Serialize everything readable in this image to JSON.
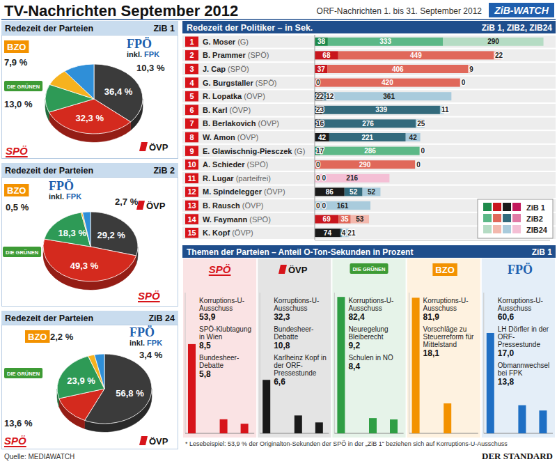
{
  "header": {
    "title": "TV-Nachrichten September 2012",
    "subtitle": "ORF-Nachrichten 1. bis 31. September 2012",
    "badge": "ZiB-WATCH"
  },
  "chart_data": [
    {
      "type": "pie",
      "title": "Redezeit der Parteien",
      "subtitle": "ZiB 1",
      "categories": [
        "ÖVP",
        "SPÖ",
        "DIE GRÜNEN",
        "BZO",
        "FPÖ inkl. FPK"
      ],
      "values": [
        36.4,
        32.3,
        13.0,
        7.9,
        10.3
      ],
      "value_labels": [
        "36,4 %",
        "32,3 %",
        "13,0 %",
        "7,9 %",
        "10,3 %"
      ],
      "colors": [
        "#3b3b3b",
        "#d42a1e",
        "#2e9a56",
        "#f6b21f",
        "#2f8fd8"
      ],
      "data_labels": true
    },
    {
      "type": "pie",
      "title": "Redezeit der Parteien",
      "subtitle": "ZiB 2",
      "categories": [
        "ÖVP",
        "SPÖ",
        "DIE GRÜNEN",
        "BZO",
        "FPÖ inkl. FPK"
      ],
      "values": [
        29.2,
        49.3,
        18.3,
        0.5,
        2.7
      ],
      "value_labels": [
        "29,2 %",
        "49,3 %",
        "18,3 %",
        "0,5 %",
        "2,7 %"
      ],
      "colors": [
        "#3b3b3b",
        "#d42a1e",
        "#2e9a56",
        "#f6b21f",
        "#2f8fd8"
      ],
      "data_labels": true
    },
    {
      "type": "pie",
      "title": "Redezeit der Parteien",
      "subtitle": "ZiB 24",
      "categories": [
        "ÖVP",
        "SPÖ",
        "DIE GRÜNEN",
        "BZO",
        "FPÖ inkl. FPK"
      ],
      "values": [
        56.8,
        13.6,
        23.9,
        2.2,
        3.4
      ],
      "value_labels": [
        "56,8 %",
        "13,6 %",
        "23,9 %",
        "2,2 %",
        "3,4 %"
      ],
      "colors": [
        "#3b3b3b",
        "#d42a1e",
        "#2e9a56",
        "#f6b21f",
        "#2f8fd8"
      ],
      "data_labels": true
    },
    {
      "type": "bar",
      "orientation": "horizontal",
      "stacked": true,
      "data_labels": true,
      "tick_labels": false,
      "legend": "bottom-right",
      "title": "Redezeit der Politiker – in Sek.",
      "subtitle": "ZiB 1, ZIB2, ZIB24",
      "xlim": [
        0,
        680
      ],
      "ranks": [
        1,
        2,
        3,
        4,
        5,
        6,
        7,
        8,
        9,
        10,
        11,
        12,
        13,
        14,
        15
      ],
      "categories": [
        "G. Moser (G)",
        "B. Prammer (SPÖ)",
        "J. Cap (SPÖ)",
        "G. Burgstaller (SPÖ)",
        "R. Lopatka (ÖVP)",
        "B. Karl (ÖVP)",
        "B. Berlakovich (ÖVP)",
        "W. Amon (ÖVP)",
        "E. Glawischnig-Piesczek (G)",
        "A. Schieder (SPÖ)",
        "R. Lugar (parteifrei)",
        "M. Spindelegger (ÖVP)",
        "B. Rausch (ÖVP)",
        "W. Faymann (SPÖ)",
        "K. Kopf (ÖVP)"
      ],
      "series": [
        {
          "name": "ZiB 1",
          "values": [
            38,
            68,
            37,
            0,
            22,
            23,
            16,
            42,
            17,
            0,
            0,
            86,
            0,
            69,
            74
          ],
          "colors": [
            "#1e8a4a",
            "#c8161d",
            "#c8161d",
            "#c8161d",
            "#1a1a1a",
            "#1a1a1a",
            "#1a1a1a",
            "#1a1a1a",
            "#1e8a4a",
            "#c8161d",
            "#c2185b",
            "#1a1a1a",
            "#1a1a1a",
            "#c8161d",
            "#1a1a1a"
          ]
        },
        {
          "name": "ZiB2",
          "values": [
            333,
            449,
            406,
            420,
            12,
            339,
            276,
            221,
            286,
            290,
            0,
            52,
            0,
            35,
            4
          ],
          "colors": [
            "#5cb887",
            "#e0685a",
            "#e0685a",
            "#e0685a",
            "#336a7c",
            "#336a7c",
            "#336a7c",
            "#336a7c",
            "#5cb887",
            "#e0685a",
            "#e07aa6",
            "#336a7c",
            "#336a7c",
            "#e0685a",
            "#336a7c"
          ]
        },
        {
          "name": "ZIB24",
          "values": [
            290,
            22,
            9,
            0,
            361,
            11,
            25,
            42,
            0,
            0,
            216,
            52,
            161,
            53,
            21
          ],
          "colors": [
            "#b5dcc4",
            "#f3b8ad",
            "#f3b8ad",
            "#f3b8ad",
            "#a9cbdc",
            "#a9cbdc",
            "#a9cbdc",
            "#a9cbdc",
            "#b5dcc4",
            "#f3b8ad",
            "#f4bfd5",
            "#a9cbdc",
            "#a9cbdc",
            "#f3b8ad",
            "#a9cbdc"
          ]
        }
      ]
    },
    {
      "type": "bar",
      "title": "Themen der Parteien – Anteil O-Ton-Sekunden in Prozent",
      "subtitle": "ZiB 1",
      "ylim": [
        0,
        85
      ],
      "tick_labels": false,
      "data_labels": true,
      "footnote": "* Lesebeispiel: 53,9 % der Originalton-Sekunden der SPÖ in der „ZiB 1“ beziehen sich auf Korruptions-U-Ausschuss",
      "groups": [
        {
          "name": "SPÖ",
          "color": "#d7141a",
          "categories": [
            "Korruptions-U-Ausschuss",
            "SPÖ-Klubtagung in Wien",
            "Bundesheer-Debatte"
          ],
          "values": [
            53.9,
            8.5,
            5.8
          ],
          "value_labels": [
            "53,9",
            "8,5",
            "5,8"
          ]
        },
        {
          "name": "ÖVP",
          "color": "#1a1a1a",
          "categories": [
            "Korruptions-U-Ausschuss",
            "Bundesheer-Debatte",
            "Karlheinz Kopf in der ORF-Pressestunde"
          ],
          "values": [
            32.3,
            10.8,
            6.6
          ],
          "value_labels": [
            "32,3",
            "10,8",
            "6,6"
          ]
        },
        {
          "name": "DIE GRÜNEN",
          "color": "#2f9e44",
          "categories": [
            "Korruptions-U-Ausschuss",
            "Neuregelung Bleiberecht",
            "Schulen in NÖ"
          ],
          "values": [
            82.4,
            9.2,
            8.4
          ],
          "value_labels": [
            "82,4",
            "9,2",
            "8,4"
          ]
        },
        {
          "name": "BZO",
          "color": "#f39200",
          "categories": [
            "Korruptions-U-Ausschuss",
            "Vorschläge zu Steuerreform für Mittelstand"
          ],
          "values": [
            81.9,
            18.1
          ],
          "value_labels": [
            "81,9",
            "18,1"
          ]
        },
        {
          "name": "FPÖ",
          "color": "#1f6fc4",
          "categories": [
            "Korruptions-U-Ausschuss",
            "LH Dörfler in der ORF-Pressestunde",
            "Obmannwechsel bei FPK"
          ],
          "values": [
            60.6,
            17.0,
            13.8
          ],
          "value_labels": [
            "60,6",
            "17,0",
            "13,8"
          ]
        }
      ]
    }
  ],
  "footer": {
    "source": "Quelle: MEDIAWATCH",
    "publisher": "DER STANDARD"
  }
}
